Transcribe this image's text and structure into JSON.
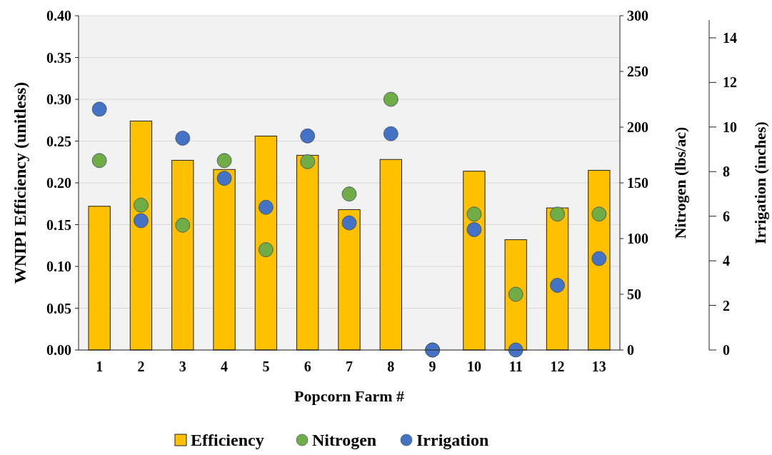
{
  "chart_data": {
    "type": "bar",
    "xlabel": "Popcorn Farm #",
    "ylabel": "WNIPI Efficiency (unitless)",
    "y2label": "Nitrogen (lbs/ac)",
    "y3label": "Irrigation  (inches)",
    "categories": [
      "1",
      "2",
      "3",
      "4",
      "5",
      "6",
      "7",
      "8",
      "9",
      "10",
      "11",
      "12",
      "13"
    ],
    "series": [
      {
        "name": "Efficiency",
        "color": "#ffc000",
        "values": [
          0.172,
          0.274,
          0.227,
          0.216,
          0.256,
          0.233,
          0.168,
          0.228,
          0,
          0.214,
          0.132,
          0.17,
          0.215
        ]
      },
      {
        "name": "Nitrogen",
        "type": "scatter",
        "axis": "y2",
        "color": "#70ad47",
        "values": [
          170,
          130,
          112,
          170,
          90,
          169,
          140,
          225,
          0,
          122,
          50,
          122,
          122
        ]
      },
      {
        "name": "Irrigation",
        "type": "scatter",
        "axis": "y3",
        "color": "#4472c4",
        "values": [
          10.8,
          5.8,
          9.5,
          7.7,
          6.4,
          9.6,
          5.7,
          9.7,
          0,
          5.4,
          0,
          2.9,
          4.1
        ]
      }
    ],
    "ylim": [
      0,
      0.4
    ],
    "yticks": [
      {
        "value": 0,
        "label": "0.00"
      },
      {
        "value": 0.05,
        "label": "0.05"
      },
      {
        "value": 0.1,
        "label": "0.10"
      },
      {
        "value": 0.15,
        "label": "0.15"
      },
      {
        "value": 0.2,
        "label": "0.20"
      },
      {
        "value": 0.25,
        "label": "0.25"
      },
      {
        "value": 0.3,
        "label": "0.30"
      },
      {
        "value": 0.35,
        "label": "0.35"
      },
      {
        "value": 0.4,
        "label": "0.40"
      }
    ],
    "y2lim": [
      0,
      300
    ],
    "y2ticks": [
      0,
      50,
      100,
      150,
      200,
      250,
      300
    ],
    "y3lim": [
      0,
      14.8
    ],
    "y3ticks": [
      0,
      2,
      4,
      6,
      8,
      10,
      12,
      14
    ],
    "grid": "y",
    "legend": "bottom",
    "marker": "circle"
  }
}
